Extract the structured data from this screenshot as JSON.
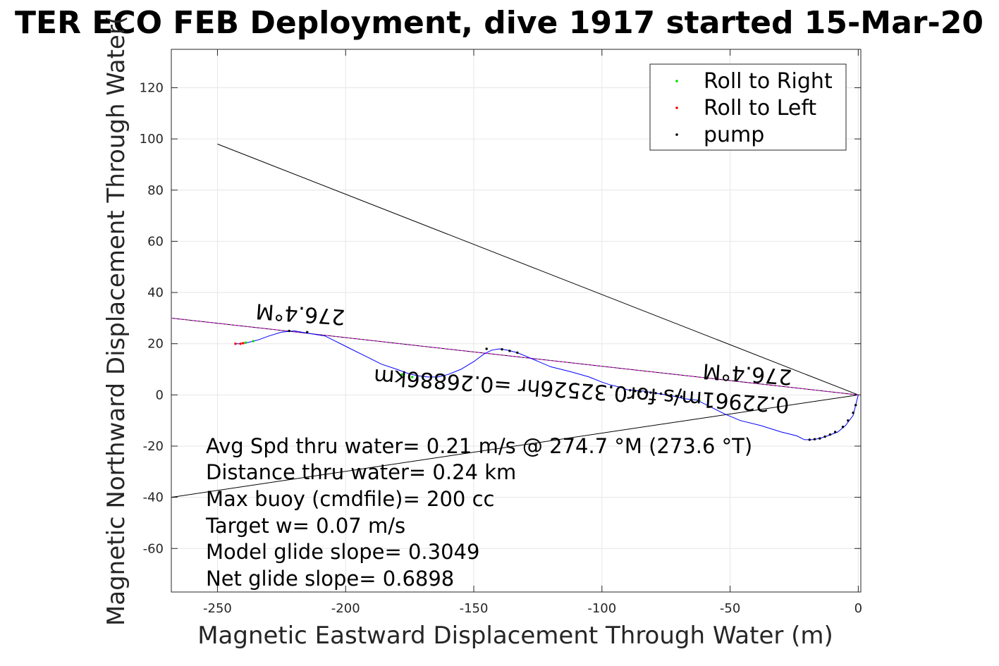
{
  "chart_data": {
    "type": "line",
    "title": "TER ECO FEB Deployment, dive 1917 started 15-Mar-20",
    "xlabel": "Magnetic Eastward Displacement Through Water (m)",
    "ylabel": "Magnetic Northward Displacement Through Water(",
    "xlim": [
      -268,
      1
    ],
    "ylim": [
      -77,
      135
    ],
    "xticks": [
      -250,
      -200,
      -150,
      -100,
      -50,
      0
    ],
    "yticks": [
      -60,
      -40,
      -20,
      0,
      20,
      40,
      60,
      80,
      100,
      120
    ],
    "xtick_labels": [
      "-250",
      "-200",
      "-150",
      "-100",
      "-50",
      "0"
    ],
    "ytick_labels": [
      "-60",
      "-40",
      "-20",
      "0",
      "20",
      "40",
      "60",
      "80",
      "100",
      "120"
    ],
    "grid": true,
    "legend_position": "top-right",
    "legend": [
      {
        "label": "Roll to Right",
        "color": "#00dd00"
      },
      {
        "label": "Roll to Left",
        "color": "#ff0000"
      },
      {
        "label": "pump",
        "color": "#000000"
      }
    ],
    "track": {
      "color": "#0000ff",
      "x": [
        0,
        -1,
        -2,
        -5,
        -8,
        -12,
        -15,
        -18,
        -21,
        -24,
        -30,
        -38,
        -46,
        -52,
        -58,
        -63,
        -68,
        -72,
        -78,
        -84,
        -90,
        -93,
        -97,
        -100,
        -105,
        -112,
        -120,
        -127,
        -133,
        -137,
        -140,
        -143,
        -146,
        -150,
        -155,
        -160,
        -164,
        -168,
        -172,
        -176,
        -180,
        -186,
        -192,
        -198,
        -201,
        -204,
        -208,
        -214,
        -220,
        -225,
        -230,
        -234,
        -238,
        -241,
        -243
      ],
      "y": [
        0,
        -4,
        -8,
        -12,
        -14.5,
        -16,
        -17,
        -17.5,
        -17.5,
        -16,
        -14.5,
        -12,
        -10,
        -7.5,
        -4.5,
        -2,
        -1.5,
        -0.5,
        0.5,
        1.5,
        2,
        3,
        4,
        5,
        7,
        9,
        11,
        14,
        16.5,
        17.5,
        18,
        17.5,
        16,
        13,
        10,
        8,
        7,
        7,
        7.5,
        8.5,
        10,
        12,
        15,
        18,
        19.5,
        21,
        23,
        24,
        25,
        24.5,
        23,
        21.5,
        20.5,
        20,
        20
      ]
    },
    "pump_points": {
      "x": [
        -1,
        -2,
        -4,
        -6,
        -9,
        -11,
        -13,
        -15,
        -17,
        -19,
        -133,
        -136,
        -139,
        -145,
        -89,
        -87,
        -85,
        -83,
        -81,
        -79,
        -77,
        -75,
        -73,
        -71,
        -69,
        -215,
        -222
      ],
      "y": [
        -4,
        -7,
        -10,
        -12.5,
        -14.5,
        -15.5,
        -16.3,
        -17,
        -17.3,
        -17.5,
        16.5,
        17.2,
        17.8,
        18,
        1.8,
        1.5,
        1.3,
        1.1,
        0.9,
        0.7,
        0.5,
        0.2,
        -0.1,
        -0.4,
        -0.7,
        24.5,
        25
      ]
    },
    "roll_right_points": {
      "x": [
        -62,
        -65,
        -170,
        -174,
        -178,
        -236,
        -239
      ],
      "y": [
        -2.3,
        -1.8,
        7,
        7,
        8,
        21,
        20.4
      ]
    },
    "roll_left_points": {
      "x": [
        -241,
        -243,
        -240
      ],
      "y": [
        20,
        20,
        20.2
      ]
    },
    "lines": [
      {
        "x": [
          0,
          -250
        ],
        "y": [
          0,
          98
        ],
        "color": "#000000"
      },
      {
        "x": [
          0,
          -268
        ],
        "y": [
          0,
          -40
        ],
        "color": "#000000"
      },
      {
        "x": [
          0,
          -268
        ],
        "y": [
          0,
          30
        ],
        "color": "#000000"
      },
      {
        "x": [
          0,
          -268
        ],
        "y": [
          0,
          30
        ],
        "color": "#ff00ff",
        "dashed": true
      }
    ],
    "annotations": {
      "heading_left": "276.4°M",
      "heading_right": "276.4°M",
      "speed": "0.22961m/s for0.32526hr =0.26886km"
    },
    "notes": [
      "Avg Spd thru water=  0.21 m/s @ 274.7 °M (273.6 °T)",
      "Distance thru water=  0.24 km",
      "Max buoy (cmdfile)= 200 cc",
      "Target w= 0.07 m/s",
      "Model glide slope= 0.3049",
      "Net glide slope= 0.6898"
    ]
  }
}
